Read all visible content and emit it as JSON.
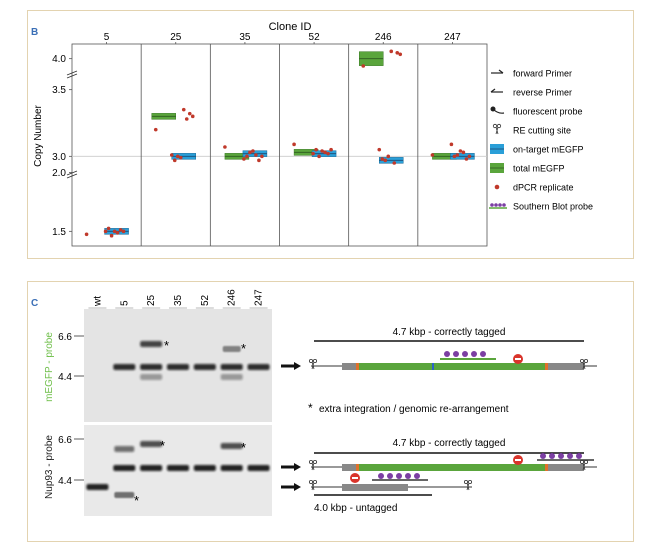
{
  "panel_b": {
    "letter": "B",
    "title": "Clone ID",
    "ylabel": "Copy Number",
    "legend": [
      {
        "icon": "forward-primer-icon",
        "label": "forward Primer"
      },
      {
        "icon": "reverse-primer-icon",
        "label": "reverse Primer"
      },
      {
        "icon": "fluorescent-probe-icon",
        "label": "fluorescent probe"
      },
      {
        "icon": "scissors-icon",
        "label": "RE cutting site"
      },
      {
        "icon": "blue-box-icon",
        "label": "on-target mEGFP"
      },
      {
        "icon": "green-box-icon",
        "label": "total mEGFP"
      },
      {
        "icon": "red-dot-icon",
        "label": "dPCR replicate"
      },
      {
        "icon": "southern-probe-icon",
        "label": "Southern Blot probe"
      }
    ]
  },
  "chart_data": {
    "type": "box",
    "title": "Clone ID",
    "xlabel": "Clone ID",
    "ylabel": "Copy Number",
    "categories": [
      "5",
      "25",
      "35",
      "52",
      "246",
      "247"
    ],
    "y_ticks": [
      "1.5",
      "2.0",
      "3.0",
      "3.5",
      "4.0"
    ],
    "axis_breaks": [
      [
        1.55,
        1.95
      ],
      [
        2.05,
        2.95
      ],
      [
        3.55,
        3.95
      ]
    ],
    "reference_line": 3.0,
    "series": [
      {
        "name": "total mEGFP",
        "color": "#5aa53c",
        "values": [
          null,
          3.3,
          3.0,
          3.03,
          4.0,
          3.0
        ]
      },
      {
        "name": "on-target mEGFP",
        "color": "#2a9fd8",
        "values": [
          1.5,
          3.0,
          3.02,
          3.02,
          2.97,
          3.0
        ]
      }
    ],
    "replicates": [
      {
        "clone": "5",
        "values": [
          1.48,
          1.5,
          1.51,
          1.49,
          1.5,
          1.47,
          1.52,
          1.5
        ]
      },
      {
        "clone": "25",
        "values": [
          3.2,
          3.3,
          3.32,
          3.28,
          3.35,
          2.99,
          3.0,
          2.97,
          3.01
        ]
      },
      {
        "clone": "35",
        "values": [
          3.07,
          3.0,
          2.97,
          3.01,
          3.04,
          3.03,
          3.0,
          2.98
        ]
      },
      {
        "clone": "52",
        "values": [
          3.09,
          3.05,
          3.02,
          3.03,
          3.04,
          3.0,
          3.05,
          3.02
        ]
      },
      {
        "clone": "246",
        "values": [
          3.95,
          4.03,
          4.04,
          3.88,
          4.05,
          3.0,
          2.97,
          2.98,
          3.05
        ]
      },
      {
        "clone": "247",
        "values": [
          3.01,
          3.0,
          2.98,
          3.03,
          3.04,
          3.01,
          3.0,
          3.09
        ]
      }
    ]
  },
  "panel_c": {
    "letter": "C",
    "lanes": [
      "wt",
      "5",
      "25",
      "35",
      "52",
      "246",
      "247"
    ],
    "blot_top": {
      "ylabel": "mEGFP - probe",
      "ylabel_color": "#6fbf4a",
      "ticks": [
        "6.6",
        "4.4"
      ],
      "asterisk": "*"
    },
    "blot_bottom": {
      "ylabel": "Nup93 - probe",
      "ylabel_color": "#222222",
      "ticks": [
        "6.6",
        "4.4"
      ],
      "asterisk": "*"
    },
    "diagram_top": {
      "label": "4.7 kbp - correctly tagged"
    },
    "note": "extra integration / genomic re-arrangement",
    "note_symbol": "*",
    "diagram_bottom": {
      "label_tagged": "4.7 kbp - correctly tagged",
      "label_untagged": "4.0 kbp - untagged"
    }
  }
}
